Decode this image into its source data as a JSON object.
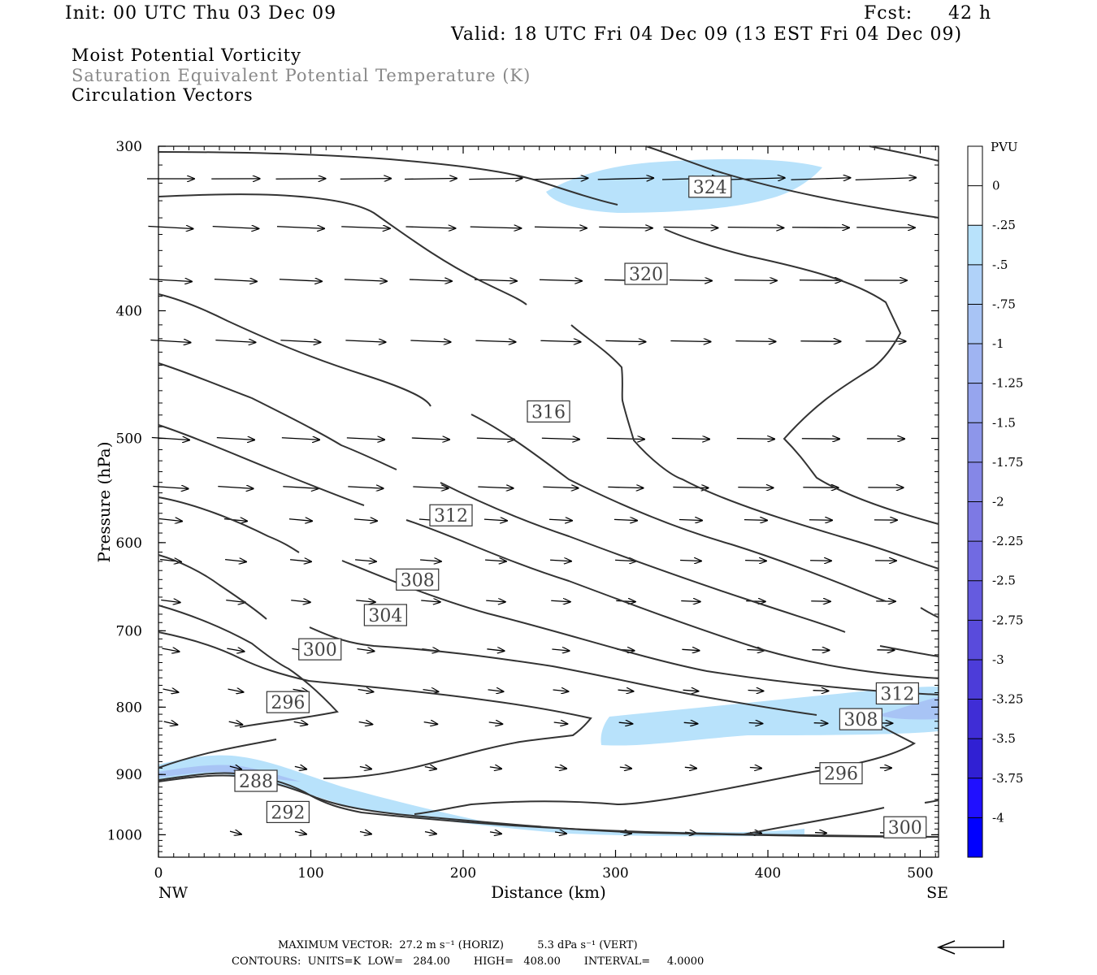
{
  "header": {
    "init": "Init: 00 UTC Thu 03 Dec 09",
    "fcst_label": "Fcst:",
    "fcst_value": "42 h",
    "valid": "Valid: 18 UTC Fri 04 Dec 09 (13 EST Fri 04 Dec 09)"
  },
  "titles": {
    "line1": "Moist Potential Vorticity",
    "line2": "Saturation Equivalent Potential Temperature (K)",
    "line3": "Circulation Vectors"
  },
  "colors": {
    "contour": "#333333",
    "shade_light": "#b8e2fb",
    "shade_mid": "#a8c4f5",
    "text_gray": "#888888"
  },
  "chart_data": {
    "type": "contour",
    "xlabel": "Distance (km)",
    "ylabel": "Pressure (hPa)",
    "x_range": [
      0,
      512
    ],
    "y_range": [
      300,
      1040
    ],
    "y_scale": "log",
    "x_ticks": [
      "0",
      "100",
      "200",
      "300",
      "400",
      "500"
    ],
    "y_ticks": [
      "300",
      "400",
      "500",
      "600",
      "700",
      "800",
      "900",
      "1000"
    ],
    "x_end_labels": {
      "left": "NW",
      "right": "SE"
    },
    "contour_labels": [
      {
        "text": "324",
        "x": 362,
        "p": 322
      },
      {
        "text": "320",
        "x": 320,
        "p": 375
      },
      {
        "text": "316",
        "x": 256,
        "p": 477
      },
      {
        "text": "312",
        "x": 192,
        "p": 572
      },
      {
        "text": "308",
        "x": 170,
        "p": 640
      },
      {
        "text": "304",
        "x": 149,
        "p": 681
      },
      {
        "text": "300",
        "x": 106,
        "p": 723
      },
      {
        "text": "296",
        "x": 85,
        "p": 793
      },
      {
        "text": "288",
        "x": 64,
        "p": 910
      },
      {
        "text": "292",
        "x": 85,
        "p": 961
      },
      {
        "text": "312",
        "x": 485,
        "p": 781
      },
      {
        "text": "308",
        "x": 461,
        "p": 817
      },
      {
        "text": "296",
        "x": 448,
        "p": 898
      },
      {
        "text": "300",
        "x": 490,
        "p": 987
      }
    ],
    "colorbar": {
      "title": "PVU",
      "labels": [
        "0",
        "-.25",
        "-.5",
        "-.75",
        "-1",
        "-1.25",
        "-1.5",
        "-1.75",
        "-2",
        "-2.25",
        "-2.5",
        "-2.75",
        "-3",
        "-3.25",
        "-3.5",
        "-3.75",
        "-4"
      ],
      "colors": [
        "#ffffff",
        "#b8e2fb",
        "#b0d2f9",
        "#a8c4f5",
        "#9fb4f2",
        "#96a5ee",
        "#8d96ea",
        "#8587e7",
        "#7d79e4",
        "#716ae2",
        "#655bdf",
        "#594bdc",
        "#4c3cd9",
        "#3f2dd6",
        "#3020d3",
        "#2010ff",
        "#0000ff"
      ]
    }
  },
  "footer": {
    "max_vector": "MAXIMUM VECTOR:  27.2 m s⁻¹ (HORIZ)          5.3 dPa s⁻¹ (VERT)",
    "contours": "CONTOURS:  UNITS=K  LOW=   284.00       HIGH=   408.00       INTERVAL=     4.0000"
  }
}
